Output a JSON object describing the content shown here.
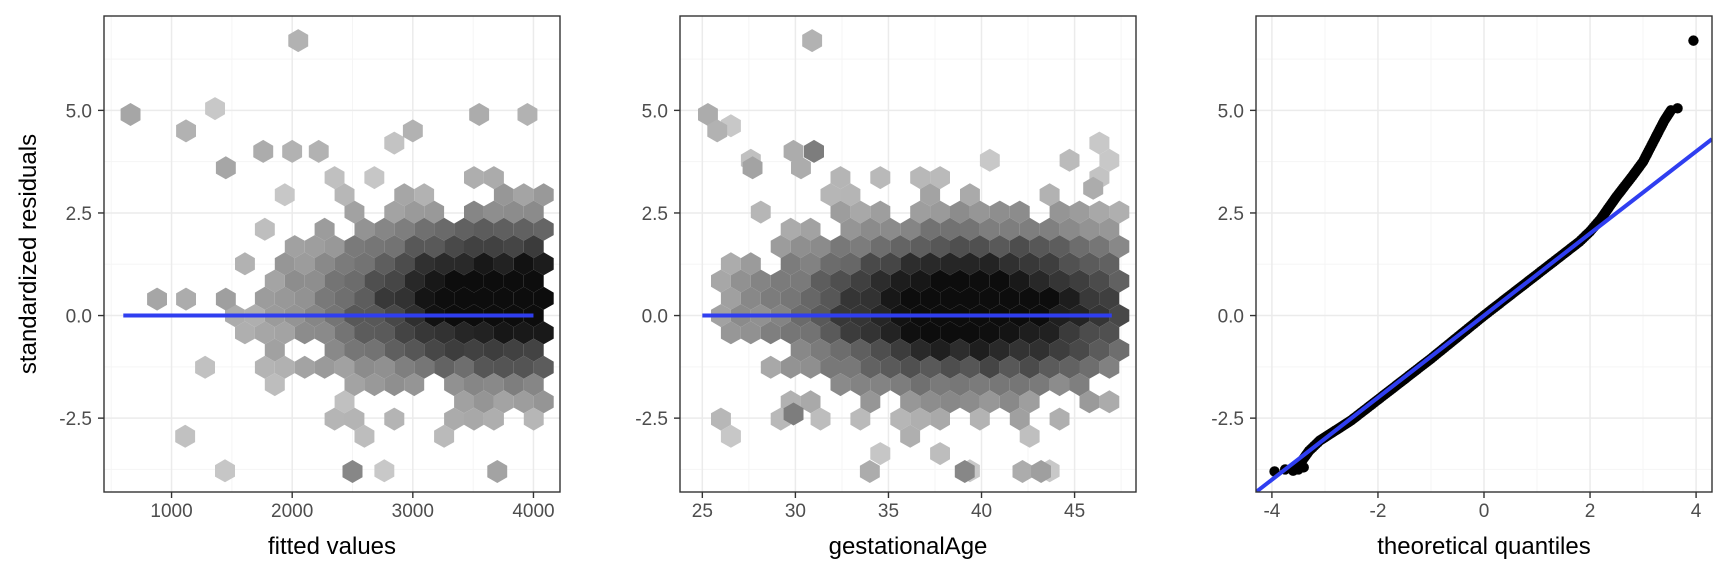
{
  "colors": {
    "background": "#ffffff",
    "panel_border": "#333333",
    "grid_major": "#ebebeb",
    "grid_minor": "#f5f5f5",
    "fit_line": "#2f3ef0",
    "points": "#000000",
    "hex_light": "#c8c8c8",
    "hex_dark": "#0d0d0d"
  },
  "chart_data": [
    {
      "type": "hexbin",
      "xlabel": "fitted values",
      "ylabel": "standardized residuals",
      "xlim": [
        440,
        4220
      ],
      "ylim": [
        -4.3,
        7.3
      ],
      "xticks": [
        1000,
        2000,
        3000,
        4000
      ],
      "yticks": [
        -2.5,
        0.0,
        2.5,
        5.0
      ],
      "xtick_labels": [
        "1000",
        "2000",
        "3000",
        "4000"
      ],
      "ytick_labels": [
        "-2.5",
        "0.0",
        "2.5",
        "5.0"
      ],
      "reference_line": {
        "x": [
          600,
          4000
        ],
        "y": [
          0,
          0
        ]
      },
      "hex_extent": {
        "x": [
          700,
          4100
        ],
        "y": [
          -3.8,
          5.2
        ]
      },
      "outlier_hexes": [
        {
          "x": 2050,
          "y": 6.7,
          "level": 0.12
        },
        {
          "x": 660,
          "y": 4.9,
          "level": 0.18
        },
        {
          "x": 1120,
          "y": 4.5,
          "level": 0.12
        },
        {
          "x": 1450,
          "y": 3.6,
          "level": 0.18
        },
        {
          "x": 1760,
          "y": 4.0,
          "level": 0.15
        },
        {
          "x": 2000,
          "y": 4.0,
          "level": 0.12
        },
        {
          "x": 2220,
          "y": 4.0,
          "level": 0.12
        },
        {
          "x": 3000,
          "y": 4.5,
          "level": 0.12
        },
        {
          "x": 3550,
          "y": 4.9,
          "level": 0.15
        },
        {
          "x": 3950,
          "y": 4.9,
          "level": 0.12
        },
        {
          "x": 880,
          "y": 0.4,
          "level": 0.18
        },
        {
          "x": 1120,
          "y": 0.4,
          "level": 0.15
        },
        {
          "x": 1450,
          "y": 0.4,
          "level": 0.22
        },
        {
          "x": 2500,
          "y": -3.8,
          "level": 0.35
        },
        {
          "x": 3700,
          "y": -3.8,
          "level": 0.2
        }
      ],
      "density_peak": {
        "x": 3850,
        "y": 0.4
      }
    },
    {
      "type": "hexbin",
      "xlabel": "gestationalAge",
      "ylabel": "",
      "xlim": [
        23.8,
        48.3
      ],
      "ylim": [
        -4.3,
        7.3
      ],
      "xticks": [
        25,
        30,
        35,
        40,
        45
      ],
      "yticks": [
        -2.5,
        0.0,
        2.5,
        5.0
      ],
      "xtick_labels": [
        "25",
        "30",
        "35",
        "40",
        "45"
      ],
      "ytick_labels": [
        "-2.5",
        "0.0",
        "2.5",
        "5.0"
      ],
      "reference_line": {
        "x": [
          25,
          47
        ],
        "y": [
          0,
          0
        ]
      },
      "hex_extent": {
        "x": [
          26,
          47.5
        ],
        "y": [
          -3.8,
          5.2
        ]
      },
      "outlier_hexes": [
        {
          "x": 30.9,
          "y": 6.7,
          "level": 0.12
        },
        {
          "x": 25.3,
          "y": 4.9,
          "level": 0.15
        },
        {
          "x": 25.8,
          "y": 4.5,
          "level": 0.12
        },
        {
          "x": 27.7,
          "y": 3.6,
          "level": 0.2
        },
        {
          "x": 29.9,
          "y": 4.0,
          "level": 0.15
        },
        {
          "x": 31.0,
          "y": 4.0,
          "level": 0.4
        },
        {
          "x": 30.3,
          "y": 3.6,
          "level": 0.15
        },
        {
          "x": 46.0,
          "y": 3.1,
          "level": 0.15
        },
        {
          "x": 29.9,
          "y": -2.4,
          "level": 0.4
        },
        {
          "x": 34.0,
          "y": -3.8,
          "level": 0.15
        },
        {
          "x": 39.1,
          "y": -3.8,
          "level": 0.35
        },
        {
          "x": 42.2,
          "y": -3.8,
          "level": 0.15
        },
        {
          "x": 43.2,
          "y": -3.8,
          "level": 0.22
        }
      ],
      "density_peak": {
        "x": 39.5,
        "y": 0.2
      }
    },
    {
      "type": "scatter",
      "subtype": "qq",
      "xlabel": "theoretical quantiles",
      "ylabel": "",
      "xlim": [
        -4.3,
        4.3
      ],
      "ylim": [
        -4.3,
        7.3
      ],
      "xticks": [
        -4,
        -2,
        0,
        2,
        4
      ],
      "yticks": [
        -2.5,
        0.0,
        2.5,
        5.0
      ],
      "xtick_labels": [
        "-4",
        "-2",
        "0",
        "2",
        "4"
      ],
      "ytick_labels": [
        "-2.5",
        "0.0",
        "2.5",
        "5.0"
      ],
      "reference_line": {
        "x": [
          -4.3,
          4.3
        ],
        "y": [
          -4.3,
          4.3
        ]
      },
      "qq_curve": [
        [
          -3.55,
          -3.75
        ],
        [
          -3.3,
          -3.3
        ],
        [
          -3.1,
          -3.05
        ],
        [
          -2.5,
          -2.55
        ],
        [
          -2.0,
          -2.05
        ],
        [
          -1.0,
          -1.05
        ],
        [
          0,
          0
        ],
        [
          1.0,
          1.0
        ],
        [
          1.5,
          1.5
        ],
        [
          1.8,
          1.8
        ],
        [
          2.0,
          2.05
        ],
        [
          2.2,
          2.35
        ],
        [
          2.5,
          2.9
        ],
        [
          2.8,
          3.4
        ],
        [
          3.0,
          3.75
        ],
        [
          3.2,
          4.25
        ],
        [
          3.4,
          4.75
        ],
        [
          3.55,
          5.05
        ]
      ],
      "qq_extra_points": [
        {
          "x": -3.95,
          "y": -3.8
        },
        {
          "x": -3.75,
          "y": -3.75
        },
        {
          "x": -3.6,
          "y": -3.78
        },
        {
          "x": -3.5,
          "y": -3.75
        },
        {
          "x": -3.4,
          "y": -3.7
        },
        {
          "x": 3.65,
          "y": 5.05
        },
        {
          "x": 3.95,
          "y": 6.7
        }
      ]
    }
  ]
}
